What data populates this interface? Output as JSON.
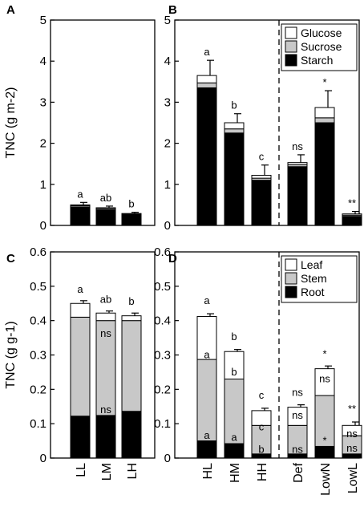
{
  "figure": {
    "colors": {
      "top": "#ffffff",
      "middle": "#c8c8c8",
      "bottom": "#000000",
      "axis": "#000000"
    }
  },
  "chart_data": [
    {
      "panel": "A",
      "type": "bar",
      "stacked": true,
      "ylabel": "TNC (g m-2)",
      "ylim": [
        0,
        5
      ],
      "yticks": [
        "0",
        "1",
        "2",
        "3",
        "4",
        "5"
      ],
      "categories": [
        "LL",
        "LM",
        "LH"
      ],
      "series": [
        {
          "name": "Starch",
          "values": [
            0.45,
            0.38,
            0.25
          ]
        },
        {
          "name": "Sucrose",
          "values": [
            0.03,
            0.03,
            0.02
          ]
        },
        {
          "name": "Glucose",
          "values": [
            0.02,
            0.02,
            0.02
          ]
        }
      ],
      "error_tops": [
        0.56,
        0.47,
        0.32
      ],
      "annotations": [
        {
          "category": "LL",
          "text": "a"
        },
        {
          "category": "LM",
          "text": "ab"
        },
        {
          "category": "LH",
          "text": "b"
        }
      ]
    },
    {
      "panel": "B",
      "type": "bar",
      "stacked": true,
      "ylim": [
        0,
        5
      ],
      "yticks": [
        "0",
        "1",
        "2",
        "3",
        "4",
        "5"
      ],
      "categories": [
        "HL",
        "HM",
        "HH",
        "Def",
        "LowN",
        "LowL"
      ],
      "legend": [
        "Glucose",
        "Sucrose",
        "Starch"
      ],
      "series": [
        {
          "name": "Starch",
          "values": [
            3.35,
            2.25,
            1.1,
            1.43,
            2.5,
            0.22
          ]
        },
        {
          "name": "Sucrose",
          "values": [
            0.12,
            0.1,
            0.05,
            0.05,
            0.12,
            0.03
          ]
        },
        {
          "name": "Glucose",
          "values": [
            0.18,
            0.15,
            0.07,
            0.05,
            0.25,
            0.03
          ]
        }
      ],
      "error_tops": [
        4.02,
        2.72,
        1.47,
        1.72,
        3.28,
        0.34
      ],
      "annotations": [
        {
          "category": "HL",
          "text": "a"
        },
        {
          "category": "HM",
          "text": "b"
        },
        {
          "category": "HH",
          "text": "c"
        },
        {
          "category": "Def",
          "text": "ns"
        },
        {
          "category": "LowN",
          "text": "*"
        },
        {
          "category": "LowL",
          "text": "**"
        }
      ]
    },
    {
      "panel": "C",
      "type": "bar",
      "stacked": true,
      "ylabel": "TNC (g g-1)",
      "ylim": [
        0,
        0.6
      ],
      "yticks": [
        "0",
        "0.1",
        "0.2",
        "0.3",
        "0.4",
        "0.5",
        "0.6"
      ],
      "categories": [
        "LL",
        "LM",
        "LH"
      ],
      "series": [
        {
          "name": "Root",
          "values": [
            0.122,
            0.124,
            0.136
          ]
        },
        {
          "name": "Stem",
          "values": [
            0.288,
            0.276,
            0.264
          ]
        },
        {
          "name": "Leaf",
          "values": [
            0.04,
            0.022,
            0.014
          ]
        }
      ],
      "error_tops": [
        0.458,
        0.428,
        0.422
      ],
      "annotations": [
        {
          "category": "LL",
          "text": "a"
        },
        {
          "category": "LM",
          "text": "ab"
        },
        {
          "category": "LH",
          "text": "b"
        },
        {
          "category": "LM",
          "text": "ns"
        },
        {
          "category": "LM",
          "text": "ns"
        }
      ]
    },
    {
      "panel": "D",
      "type": "bar",
      "stacked": true,
      "ylim": [
        0,
        0.6
      ],
      "yticks": [
        "0",
        "0.1",
        "0.2",
        "0.3",
        "0.4",
        "0.5",
        "0.6"
      ],
      "categories": [
        "HL",
        "HM",
        "HH",
        "Def",
        "LowN",
        "LowL"
      ],
      "legend": [
        "Leaf",
        "Stem",
        "Root"
      ],
      "series": [
        {
          "name": "Root",
          "values": [
            0.05,
            0.042,
            0.012,
            0.012,
            0.034,
            0.012
          ]
        },
        {
          "name": "Stem",
          "values": [
            0.237,
            0.188,
            0.083,
            0.083,
            0.148,
            0.053
          ]
        },
        {
          "name": "Leaf",
          "values": [
            0.125,
            0.08,
            0.043,
            0.053,
            0.078,
            0.03
          ]
        }
      ],
      "error_tops": [
        0.42,
        0.316,
        0.145,
        0.155,
        0.268,
        0.105
      ],
      "annotations": [
        {
          "category": "HL",
          "text": "a"
        },
        {
          "category": "HL",
          "text": "a"
        },
        {
          "category": "HL",
          "text": "a"
        },
        {
          "category": "HM",
          "text": "b"
        },
        {
          "category": "HM",
          "text": "b"
        },
        {
          "category": "HM",
          "text": "a"
        },
        {
          "category": "HH",
          "text": "c"
        },
        {
          "category": "HH",
          "text": "c"
        },
        {
          "category": "HH",
          "text": "b"
        },
        {
          "category": "Def",
          "text": "ns"
        },
        {
          "category": "Def",
          "text": "ns"
        },
        {
          "category": "Def",
          "text": "ns"
        },
        {
          "category": "LowN",
          "text": "*"
        },
        {
          "category": "LowN",
          "text": "ns"
        },
        {
          "category": "LowN",
          "text": "*"
        },
        {
          "category": "LowL",
          "text": "**"
        },
        {
          "category": "LowL",
          "text": "ns"
        },
        {
          "category": "LowL",
          "text": "ns"
        }
      ]
    }
  ]
}
